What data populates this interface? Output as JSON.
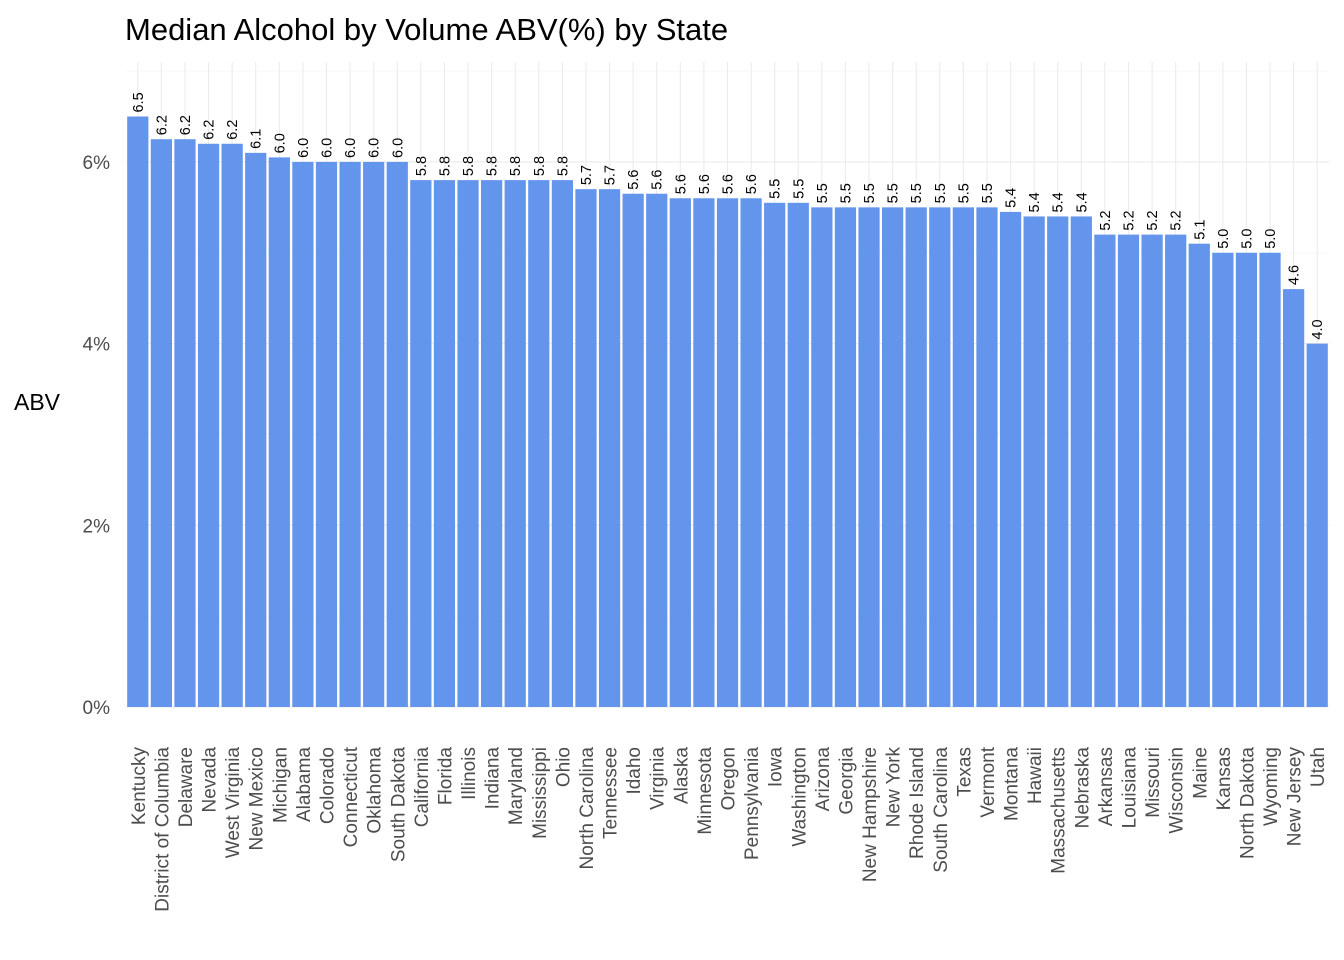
{
  "chart_data": {
    "type": "bar",
    "title": "Median Alcohol by Volume ABV(%) by State",
    "xlabel": "",
    "ylabel": "ABV",
    "ylim": [
      0,
      7.1
    ],
    "yticks": [
      0,
      2,
      4,
      6
    ],
    "ytick_labels": [
      "0%",
      "2%",
      "4%",
      "6%"
    ],
    "grid": true,
    "bar_color": "#6495ED",
    "categories": [
      "Kentucky",
      "District of Columbia",
      "Delaware",
      "Nevada",
      "West Virginia",
      "New Mexico",
      "Michigan",
      "Alabama",
      "Colorado",
      "Connecticut",
      "Oklahoma",
      "South Dakota",
      "California",
      "Florida",
      "Illinois",
      "Indiana",
      "Maryland",
      "Mississippi",
      "Ohio",
      "North Carolina",
      "Tennessee",
      "Idaho",
      "Virginia",
      "Alaska",
      "Minnesota",
      "Oregon",
      "Pennsylvania",
      "Iowa",
      "Washington",
      "Arizona",
      "Georgia",
      "New Hampshire",
      "New York",
      "Rhode Island",
      "South Carolina",
      "Texas",
      "Vermont",
      "Montana",
      "Hawaii",
      "Massachusetts",
      "Nebraska",
      "Arkansas",
      "Louisiana",
      "Missouri",
      "Wisconsin",
      "Maine",
      "Kansas",
      "North Dakota",
      "Wyoming",
      "New Jersey",
      "Utah"
    ],
    "values": [
      6.5,
      6.25,
      6.25,
      6.2,
      6.2,
      6.1,
      6.05,
      6.0,
      6.0,
      6.0,
      6.0,
      6.0,
      5.8,
      5.8,
      5.8,
      5.8,
      5.8,
      5.8,
      5.8,
      5.7,
      5.7,
      5.65,
      5.65,
      5.6,
      5.6,
      5.6,
      5.6,
      5.55,
      5.55,
      5.5,
      5.5,
      5.5,
      5.5,
      5.5,
      5.5,
      5.5,
      5.5,
      5.45,
      5.4,
      5.4,
      5.4,
      5.2,
      5.2,
      5.2,
      5.2,
      5.1,
      5.0,
      5.0,
      5.0,
      4.6,
      4.0
    ],
    "data_labels": [
      "6.5",
      "6.2",
      "6.2",
      "6.2",
      "6.2",
      "6.1",
      "6.0",
      "6.0",
      "6.0",
      "6.0",
      "6.0",
      "6.0",
      "5.8",
      "5.8",
      "5.8",
      "5.8",
      "5.8",
      "5.8",
      "5.8",
      "5.7",
      "5.7",
      "5.6",
      "5.6",
      "5.6",
      "5.6",
      "5.6",
      "5.6",
      "5.5",
      "5.5",
      "5.5",
      "5.5",
      "5.5",
      "5.5",
      "5.5",
      "5.5",
      "5.5",
      "5.5",
      "5.4",
      "5.4",
      "5.4",
      "5.4",
      "5.2",
      "5.2",
      "5.2",
      "5.2",
      "5.1",
      "5.0",
      "5.0",
      "5.0",
      "4.6",
      "4.0"
    ]
  }
}
